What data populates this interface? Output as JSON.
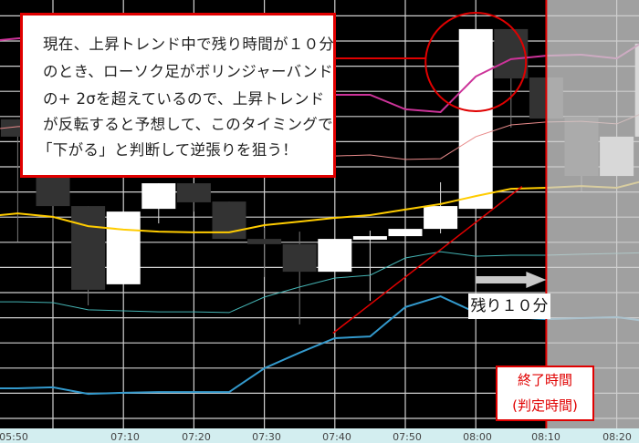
{
  "chart_data": {
    "type": "candlestick",
    "y_axis": "unlabeled price level",
    "ylim": [
      0,
      17
    ],
    "grid": true,
    "x_tick_labels": [
      "05:50",
      "07:10",
      "07:20",
      "07:30",
      "07:40",
      "07:50",
      "08:00",
      "08:10",
      "08:20"
    ],
    "candles": [
      {
        "t": "06:55",
        "o": 12.33,
        "h": 12.33,
        "l": 7.45,
        "c": 11.64
      },
      {
        "t": "07:00",
        "o": 10.0,
        "h": 10.0,
        "l": 7.45,
        "c": 8.87
      },
      {
        "t": "07:05",
        "o": 8.87,
        "h": 8.87,
        "l": 4.91,
        "c": 5.53
      },
      {
        "t": "07:10",
        "o": 5.75,
        "h": 8.65,
        "l": 5.75,
        "c": 8.65
      },
      {
        "t": "07:15",
        "o": 8.76,
        "h": 9.78,
        "l": 8.18,
        "c": 9.78
      },
      {
        "t": "07:20",
        "o": 9.78,
        "h": 9.78,
        "l": 8.65,
        "c": 9.02
      },
      {
        "t": "07:25",
        "o": 9.05,
        "h": 9.05,
        "l": 7.56,
        "c": 7.56
      },
      {
        "t": "07:30",
        "o": 7.56,
        "h": 8.0,
        "l": 6.04,
        "c": 7.35
      },
      {
        "t": "07:35",
        "o": 7.35,
        "h": 7.85,
        "l": 4.15,
        "c": 6.25
      },
      {
        "t": "07:40",
        "o": 6.25,
        "h": 7.56,
        "l": 6.25,
        "c": 7.56
      },
      {
        "t": "07:45",
        "o": 7.53,
        "h": 7.89,
        "l": 5.09,
        "c": 7.67
      },
      {
        "t": "07:50",
        "o": 7.67,
        "h": 7.96,
        "l": 7.67,
        "c": 7.96
      },
      {
        "t": "07:55",
        "o": 7.96,
        "h": 9.82,
        "l": 7.78,
        "c": 8.87
      },
      {
        "t": "08:00",
        "o": 8.76,
        "h": 15.93,
        "l": 8.76,
        "c": 15.93
      },
      {
        "t": "08:05",
        "o": 15.93,
        "h": 15.93,
        "l": 12.0,
        "c": 13.96
      },
      {
        "t": "08:10",
        "o": 14.0,
        "h": 14.0,
        "l": 12.36,
        "c": 12.36
      },
      {
        "t": "08:15",
        "o": 12.44,
        "h": 12.44,
        "l": 9.45,
        "c": 10.07
      },
      {
        "t": "08:20",
        "o": 10.07,
        "h": 11.64,
        "l": 10.07,
        "c": 11.64
      },
      {
        "t": "08:25",
        "o": 11.64,
        "h": 15.35,
        "l": 11.64,
        "c": 15.35
      }
    ],
    "band_times": [
      "06:50",
      "06:55",
      "07:00",
      "07:05",
      "07:10",
      "07:15",
      "07:20",
      "07:25",
      "07:30",
      "07:35",
      "07:40",
      "07:45",
      "07:50",
      "07:55",
      "08:00",
      "08:05",
      "08:10",
      "08:15",
      "08:20",
      "08:25"
    ],
    "bands": [
      {
        "id": "upper-2sigma",
        "color": "#cc3399",
        "width": 2,
        "values": [
          15.42,
          15.56,
          15.64,
          15.27,
          14.91,
          14.55,
          14.18,
          13.82,
          13.45,
          13.31,
          13.31,
          13.31,
          12.73,
          12.62,
          14.04,
          14.73,
          14.87,
          14.91,
          14.76,
          15.64
        ]
      },
      {
        "id": "upper-1sigma",
        "color": "#e88a8a",
        "width": 1,
        "values": [
          11.89,
          12.04,
          12.07,
          11.93,
          11.71,
          11.56,
          11.38,
          11.2,
          11.05,
          10.91,
          10.87,
          10.91,
          10.73,
          10.76,
          11.64,
          12.11,
          12.22,
          12.25,
          12.15,
          12.73
        ]
      },
      {
        "id": "middle",
        "color": "#ffcc00",
        "width": 2,
        "values": [
          8.44,
          8.58,
          8.44,
          8.07,
          7.93,
          7.85,
          7.82,
          7.82,
          8.11,
          8.25,
          8.4,
          8.51,
          8.73,
          8.95,
          9.27,
          9.56,
          9.6,
          9.67,
          9.6,
          9.96
        ]
      },
      {
        "id": "lower-1sigma",
        "color": "#44b3b3",
        "width": 1,
        "values": [
          5.05,
          5.05,
          5.02,
          4.73,
          4.69,
          4.65,
          4.65,
          4.62,
          5.24,
          5.64,
          6.0,
          6.11,
          6.8,
          7.05,
          6.87,
          6.91,
          6.91,
          6.95,
          6.98,
          7.02
        ]
      },
      {
        "id": "lower-2sigma",
        "color": "#3399cc",
        "width": 2,
        "values": [
          1.6,
          1.6,
          1.64,
          1.38,
          1.42,
          1.45,
          1.45,
          1.45,
          2.4,
          3.02,
          3.6,
          3.67,
          4.84,
          5.27,
          4.62,
          4.44,
          4.36,
          4.4,
          4.44,
          4.25
        ]
      }
    ],
    "trendline": {
      "color": "#e00000",
      "from": {
        "t": "07:40",
        "v": 3.8
      },
      "to": {
        "t": "08:05",
        "v": 9.65
      }
    },
    "expiry_time": "08:10",
    "colors": {
      "bull": "#ffffff",
      "bear": "#333333",
      "future_shade": "#a0a0a0",
      "annotation": "#e00000",
      "arrow": "#c8c8c8"
    }
  },
  "annotations": {
    "note_lines": [
      "現在、上昇トレンド中で残り時間が１０分",
      "のとき、ローソク足がボリンジャーバンド",
      "の+ 2σを超えているので、上昇トレンド",
      "が反転すると予想して、このタイミングで",
      "「下がる」と判断して逆張りを狙う！"
    ],
    "remaining": "残り１０分",
    "end_time": "終了時間",
    "judgement_time": "(判定時間)"
  }
}
